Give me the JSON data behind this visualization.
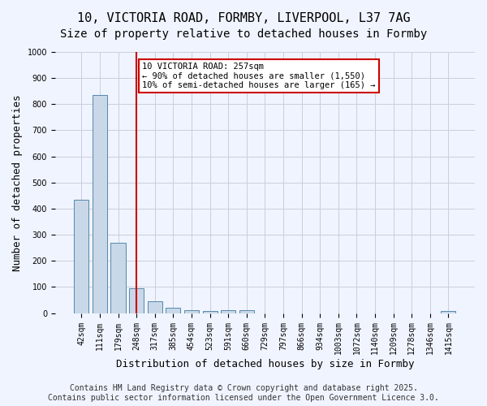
{
  "title_line1": "10, VICTORIA ROAD, FORMBY, LIVERPOOL, L37 7AG",
  "title_line2": "Size of property relative to detached houses in Formby",
  "xlabel": "Distribution of detached houses by size in Formby",
  "ylabel": "Number of detached properties",
  "categories": [
    "42sqm",
    "111sqm",
    "179sqm",
    "248sqm",
    "317sqm",
    "385sqm",
    "454sqm",
    "523sqm",
    "591sqm",
    "660sqm",
    "729sqm",
    "797sqm",
    "866sqm",
    "934sqm",
    "1003sqm",
    "1072sqm",
    "1140sqm",
    "1209sqm",
    "1278sqm",
    "1346sqm",
    "1415sqm"
  ],
  "values": [
    435,
    835,
    270,
    95,
    45,
    20,
    12,
    8,
    10,
    10,
    0,
    0,
    0,
    0,
    0,
    0,
    0,
    0,
    0,
    0,
    8
  ],
  "bar_color": "#c8d8e8",
  "bar_edge_color": "#5588aa",
  "red_line_index": 3,
  "red_line_color": "#cc0000",
  "annotation_text": "10 VICTORIA ROAD: 257sqm\n← 90% of detached houses are smaller (1,550)\n10% of semi-detached houses are larger (165) →",
  "annotation_box_color": "#ffffff",
  "annotation_box_edge_color": "#cc0000",
  "ylim": [
    0,
    1000
  ],
  "yticks": [
    0,
    100,
    200,
    300,
    400,
    500,
    600,
    700,
    800,
    900,
    1000
  ],
  "background_color": "#f0f4ff",
  "grid_color": "#ccccdd",
  "footer_text": "Contains HM Land Registry data © Crown copyright and database right 2025.\nContains public sector information licensed under the Open Government Licence 3.0.",
  "title_fontsize": 11,
  "subtitle_fontsize": 10,
  "tick_fontsize": 7,
  "ylabel_fontsize": 9,
  "xlabel_fontsize": 9,
  "footer_fontsize": 7
}
